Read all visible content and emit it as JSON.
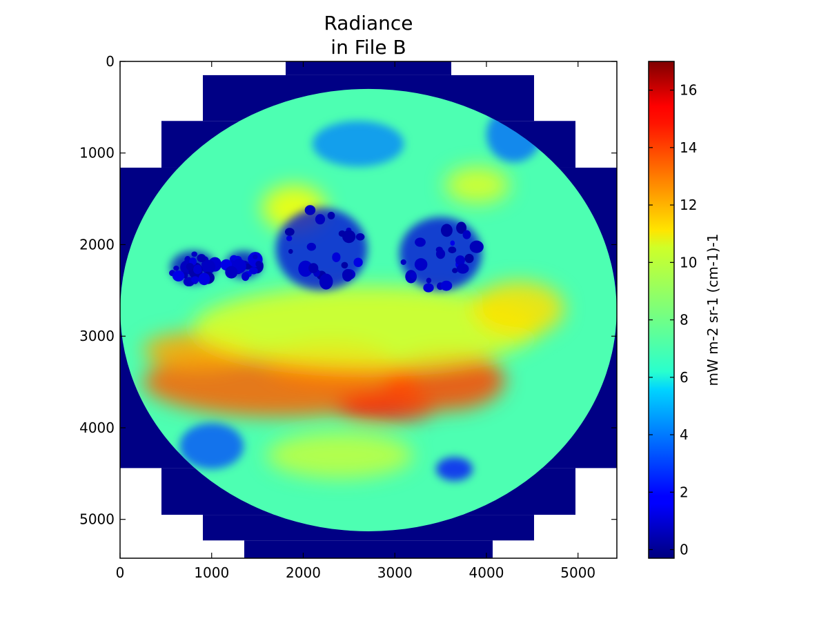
{
  "chart_data": {
    "type": "heatmap",
    "title_lines": [
      "Radiance",
      "in File B"
    ],
    "xlabel": "",
    "ylabel": "",
    "xlim": [
      0,
      5424
    ],
    "ylim": [
      5424,
      0
    ],
    "x_ticks": [
      0,
      1000,
      2000,
      3000,
      4000,
      5000
    ],
    "y_ticks": [
      0,
      1000,
      2000,
      3000,
      4000,
      5000
    ],
    "x_tick_labels": [
      "0",
      "1000",
      "2000",
      "3000",
      "4000",
      "5000"
    ],
    "y_tick_labels": [
      "0",
      "1000",
      "2000",
      "3000",
      "4000",
      "5000"
    ],
    "grid": false,
    "colormap": "jet",
    "colorbar": {
      "label": "mW m-2 sr-1 (cm-1)-1",
      "range": [
        -0.3,
        17.0
      ],
      "ticks": [
        0,
        2,
        4,
        6,
        8,
        10,
        12,
        14,
        16
      ],
      "tick_labels": [
        "0",
        "2",
        "4",
        "6",
        "8",
        "10",
        "12",
        "14",
        "16"
      ]
    },
    "disk": {
      "description": "full Earth disk image",
      "center": [
        2712,
        2712
      ],
      "radius_x": 2710,
      "top": 300,
      "bottom": 5130,
      "fill_value_background": -0.2
    },
    "fill_blocks": [
      {
        "x": [
          1808,
          3616
        ],
        "y": [
          0,
          150
        ]
      },
      {
        "x": [
          904,
          4520
        ],
        "y": [
          150,
          650
        ]
      },
      {
        "x": [
          452,
          4972
        ],
        "y": [
          650,
          1160
        ]
      },
      {
        "x": [
          0,
          5424
        ],
        "y": [
          1160,
          4440
        ]
      },
      {
        "x": [
          452,
          4972
        ],
        "y": [
          4440,
          4950
        ]
      },
      {
        "x": [
          904,
          4520
        ],
        "y": [
          4950,
          5230
        ]
      },
      {
        "x": [
          1356,
          4068
        ],
        "y": [
          5230,
          5424
        ]
      }
    ],
    "features": [
      {
        "type": "high_band",
        "cx": 1750,
        "cy": 3500,
        "rx": 1500,
        "ry": 380,
        "value": 13.2
      },
      {
        "type": "high_band",
        "cx": 2900,
        "cy": 3780,
        "rx": 550,
        "ry": 160,
        "value": 14.3
      },
      {
        "type": "high_band",
        "cx": 3550,
        "cy": 3480,
        "rx": 650,
        "ry": 330,
        "value": 13.6
      },
      {
        "type": "high_band",
        "cx": 2300,
        "cy": 3300,
        "rx": 700,
        "ry": 250,
        "value": 12.8
      },
      {
        "type": "high_band",
        "cx": 850,
        "cy": 3150,
        "rx": 600,
        "ry": 200,
        "value": 12.0
      },
      {
        "type": "moderate",
        "cx": 2700,
        "cy": 2900,
        "rx": 1900,
        "ry": 450,
        "value": 10.0
      },
      {
        "type": "moderate",
        "cx": 4350,
        "cy": 2700,
        "rx": 500,
        "ry": 300,
        "value": 11.0
      },
      {
        "type": "moderate",
        "cx": 1900,
        "cy": 1600,
        "rx": 350,
        "ry": 250,
        "value": 10.5
      },
      {
        "type": "moderate",
        "cx": 3900,
        "cy": 1350,
        "rx": 350,
        "ry": 200,
        "value": 10.0
      },
      {
        "type": "moderate",
        "cx": 2400,
        "cy": 4300,
        "rx": 800,
        "ry": 250,
        "value": 9.5
      },
      {
        "type": "cold_cluster",
        "cx": 800,
        "cy": 2250,
        "rx": 250,
        "ry": 180,
        "value": 0.8
      },
      {
        "type": "cold_cluster",
        "cx": 1350,
        "cy": 2220,
        "rx": 200,
        "ry": 150,
        "value": 0.8
      },
      {
        "type": "cold_cluster",
        "cx": 2200,
        "cy": 2050,
        "rx": 500,
        "ry": 450,
        "value": 1.2
      },
      {
        "type": "cold_cluster",
        "cx": 3500,
        "cy": 2100,
        "rx": 450,
        "ry": 400,
        "value": 1.2
      },
      {
        "type": "cold_cluster",
        "cx": 3650,
        "cy": 4450,
        "rx": 200,
        "ry": 130,
        "value": 2.0
      },
      {
        "type": "cold_cluster",
        "cx": 1000,
        "cy": 4200,
        "rx": 350,
        "ry": 250,
        "value": 3.0
      },
      {
        "type": "cold_cluster",
        "cx": 2600,
        "cy": 900,
        "rx": 500,
        "ry": 250,
        "value": 4.0
      },
      {
        "type": "cold_cluster",
        "cx": 4300,
        "cy": 800,
        "rx": 300,
        "ry": 300,
        "value": 3.5
      }
    ],
    "base_value": 7.5
  }
}
